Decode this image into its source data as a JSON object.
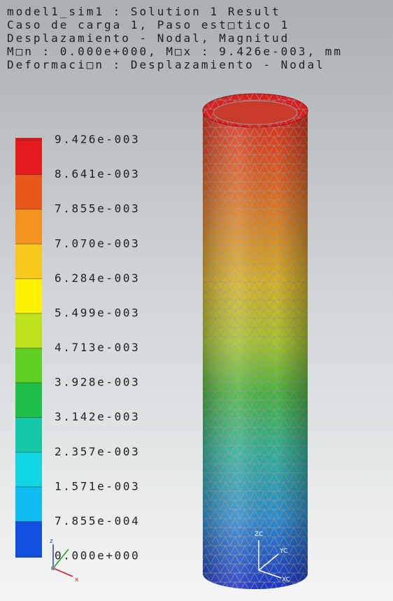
{
  "header": {
    "lines": [
      "model1_sim1 : Solution 1 Result",
      "Caso de carga 1, Paso est□tico 1",
      "Desplazamiento - Nodal, Magnitud",
      "M□n :  0.000e+000, M□x :  9.426e-003, mm",
      "Deformaci□n : Desplazamiento - Nodal"
    ]
  },
  "legend": {
    "labels": [
      "9.426e-003",
      "8.641e-003",
      "7.855e-003",
      "7.070e-003",
      "6.284e-003",
      "5.499e-003",
      "4.713e-003",
      "3.928e-003",
      "3.142e-003",
      "2.357e-003",
      "1.571e-003",
      "7.855e-004",
      "0.000e+000"
    ]
  },
  "triad": {
    "small": {
      "z": "z",
      "x": "x"
    },
    "model": {
      "z": "ZC",
      "y": "YC",
      "x": "XC"
    }
  }
}
